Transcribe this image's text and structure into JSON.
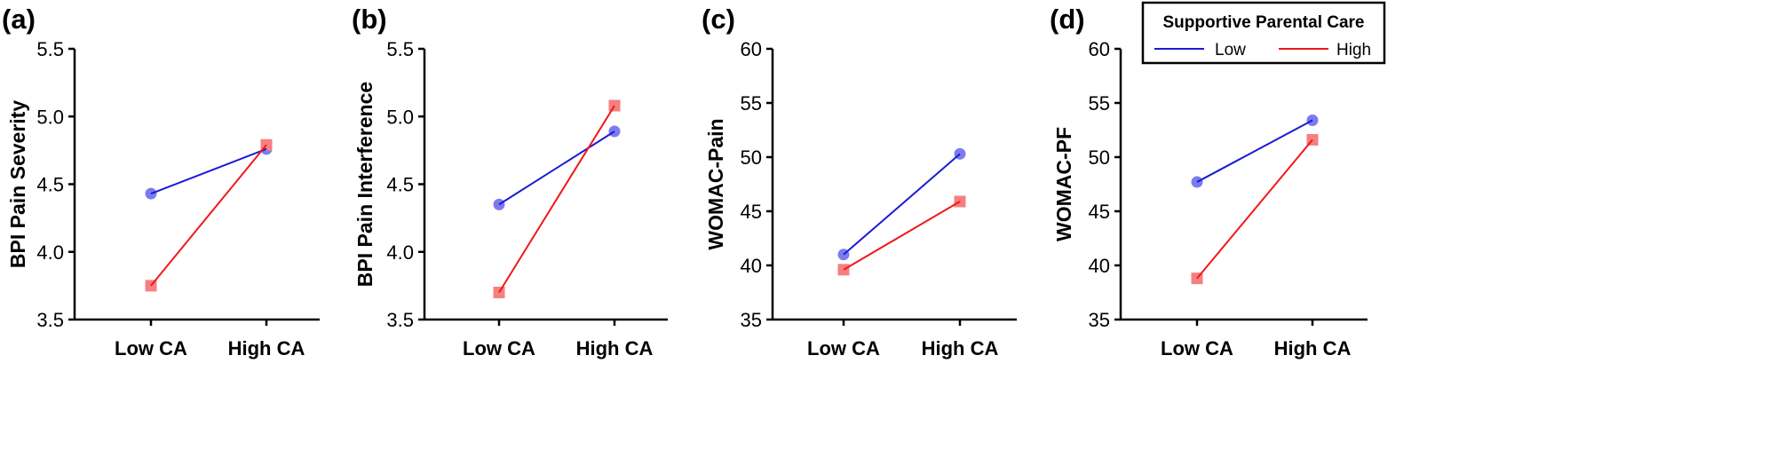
{
  "chart_data": [
    {
      "type": "line",
      "panel_label": "(a)",
      "ylabel": "BPI Pain Severity",
      "categories": [
        "Low CA",
        "High CA"
      ],
      "ylim": [
        3.5,
        5.5
      ],
      "yticks": [
        "3.5",
        "4.0",
        "4.5",
        "5.0",
        "5.5"
      ],
      "series": [
        {
          "name": "Low",
          "values": [
            4.43,
            4.76
          ]
        },
        {
          "name": "High",
          "values": [
            3.75,
            4.79
          ]
        }
      ]
    },
    {
      "type": "line",
      "panel_label": "(b)",
      "ylabel": "BPI Pain Interference",
      "categories": [
        "Low CA",
        "High CA"
      ],
      "ylim": [
        3.5,
        5.5
      ],
      "yticks": [
        "3.5",
        "4.0",
        "4.5",
        "5.0",
        "5.5"
      ],
      "series": [
        {
          "name": "Low",
          "values": [
            4.35,
            4.89
          ]
        },
        {
          "name": "High",
          "values": [
            3.7,
            5.08
          ]
        }
      ]
    },
    {
      "type": "line",
      "panel_label": "(c)",
      "ylabel": "WOMAC-Pain",
      "categories": [
        "Low CA",
        "High CA"
      ],
      "ylim": [
        35,
        60
      ],
      "yticks": [
        "35",
        "40",
        "45",
        "50",
        "55",
        "60"
      ],
      "series": [
        {
          "name": "Low",
          "values": [
            41.0,
            50.3
          ]
        },
        {
          "name": "High",
          "values": [
            39.6,
            45.9
          ]
        }
      ]
    },
    {
      "type": "line",
      "panel_label": "(d)",
      "ylabel": "WOMAC-PF",
      "categories": [
        "Low CA",
        "High CA"
      ],
      "ylim": [
        35,
        60
      ],
      "yticks": [
        "35",
        "40",
        "45",
        "50",
        "55",
        "60"
      ],
      "series": [
        {
          "name": "Low",
          "values": [
            47.7,
            53.4
          ]
        },
        {
          "name": "High",
          "values": [
            38.8,
            51.6
          ]
        }
      ]
    }
  ],
  "legend": {
    "title": "Supportive Parental Care",
    "entries": [
      {
        "label": "Low",
        "color": "#1a1ad6",
        "marker_color": "#7b7bee",
        "marker": "circle"
      },
      {
        "label": "High",
        "color": "#f01818",
        "marker_color": "#f67f7f",
        "marker": "square"
      }
    ]
  }
}
